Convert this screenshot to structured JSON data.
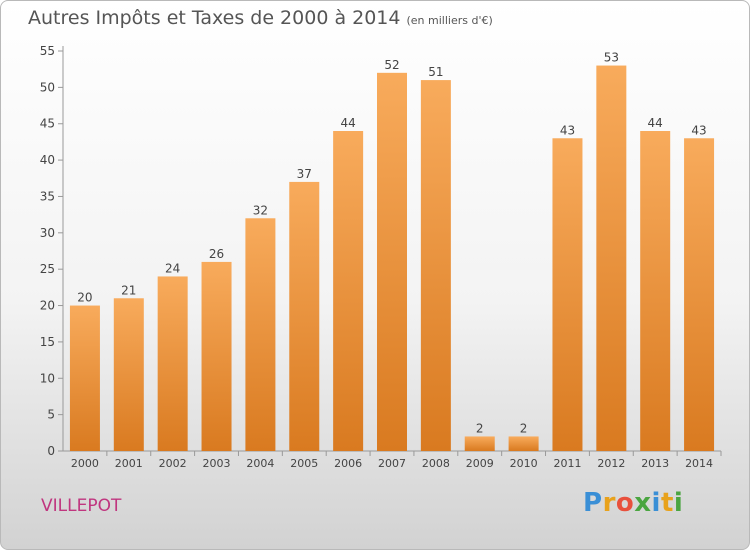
{
  "chart_data": {
    "type": "bar",
    "title": "Autres Impôts et Taxes de 2000 à 2014",
    "subtitle": "(en milliers d'€)",
    "categories": [
      "2000",
      "2001",
      "2002",
      "2003",
      "2004",
      "2005",
      "2006",
      "2007",
      "2008",
      "2009",
      "2010",
      "2011",
      "2012",
      "2013",
      "2014"
    ],
    "values": [
      20,
      21,
      24,
      26,
      32,
      37,
      44,
      52,
      51,
      2,
      2,
      43,
      53,
      44,
      43
    ],
    "yticks": [
      0,
      5,
      10,
      15,
      20,
      25,
      30,
      35,
      40,
      45,
      50,
      55
    ],
    "ylim": [
      0,
      55
    ],
    "xlabel": "",
    "ylabel": "",
    "grid": false,
    "data_labels": true,
    "bar_color_top": "#f8ab5c",
    "bar_color_bottom": "#d97a20"
  },
  "commune": "VILLEPOT",
  "logo": {
    "letters": [
      "P",
      "r",
      "o",
      "x",
      "i",
      "t",
      "i"
    ],
    "colors": [
      "#3a8fd6",
      "#e8a21c",
      "#e8503c",
      "#4aa540",
      "#3a8fd6",
      "#e8a21c",
      "#4aa540"
    ]
  }
}
